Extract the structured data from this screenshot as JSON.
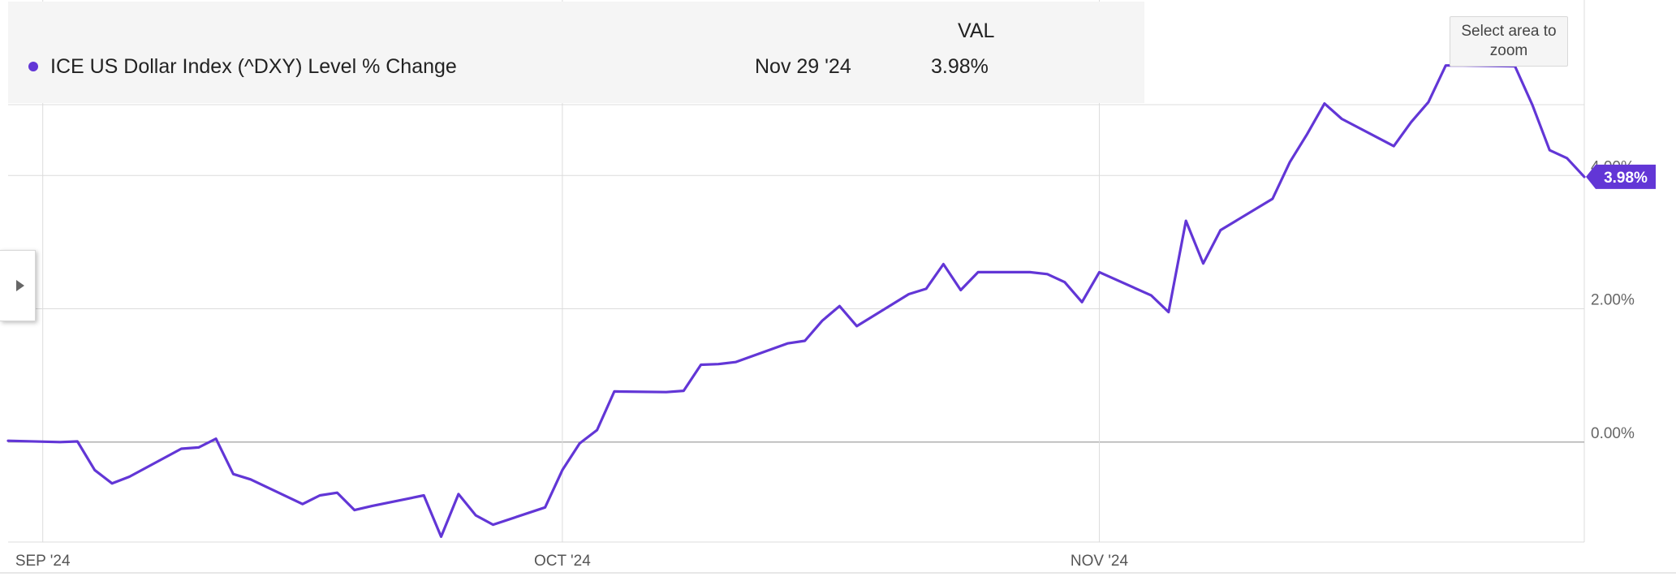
{
  "legend": {
    "column_header": "VAL",
    "series_name": "ICE US Dollar Index (^DXY) Level % Change",
    "date": "Nov 29 '24",
    "value": "3.98%"
  },
  "zoom_button_label": "Select area to zoom",
  "colors": {
    "series": "#6236d6",
    "grid": "#dcdcdc",
    "zero_line": "#b0b0b0"
  },
  "chart_data": {
    "type": "line",
    "title": "",
    "xlabel": "",
    "ylabel": "",
    "x_ticks": [
      {
        "date": "2024-09-01",
        "label": "SEP '24"
      },
      {
        "date": "2024-10-01",
        "label": "OCT '24"
      },
      {
        "date": "2024-11-01",
        "label": "NOV '24"
      }
    ],
    "y_ticks": [
      {
        "value": 0,
        "label": "0.00%"
      },
      {
        "value": 2,
        "label": "2.00%"
      },
      {
        "value": 4,
        "label": "4.00%"
      }
    ],
    "xlim": [
      "2024-08-30",
      "2024-11-29"
    ],
    "ylim": [
      -1.5,
      6.0
    ],
    "last_value_label": "3.98%",
    "series": [
      {
        "name": "ICE US Dollar Index (^DXY) Level % Change",
        "x": [
          "2024-08-30",
          "2024-09-02",
          "2024-09-03",
          "2024-09-04",
          "2024-09-05",
          "2024-09-06",
          "2024-09-09",
          "2024-09-10",
          "2024-09-11",
          "2024-09-12",
          "2024-09-13",
          "2024-09-16",
          "2024-09-17",
          "2024-09-18",
          "2024-09-19",
          "2024-09-20",
          "2024-09-23",
          "2024-09-24",
          "2024-09-25",
          "2024-09-26",
          "2024-09-27",
          "2024-09-30",
          "2024-10-01",
          "2024-10-02",
          "2024-10-03",
          "2024-10-04",
          "2024-10-07",
          "2024-10-08",
          "2024-10-09",
          "2024-10-10",
          "2024-10-11",
          "2024-10-14",
          "2024-10-15",
          "2024-10-16",
          "2024-10-17",
          "2024-10-18",
          "2024-10-21",
          "2024-10-22",
          "2024-10-23",
          "2024-10-24",
          "2024-10-25",
          "2024-10-28",
          "2024-10-29",
          "2024-10-30",
          "2024-10-31",
          "2024-11-01",
          "2024-11-04",
          "2024-11-05",
          "2024-11-06",
          "2024-11-07",
          "2024-11-08",
          "2024-11-11",
          "2024-11-12",
          "2024-11-13",
          "2024-11-14",
          "2024-11-15",
          "2024-11-18",
          "2024-11-19",
          "2024-11-20",
          "2024-11-21",
          "2024-11-22",
          "2024-11-25",
          "2024-11-26",
          "2024-11-27",
          "2024-11-28",
          "2024-11-29"
        ],
        "values": [
          0.02,
          0.0,
          0.01,
          -0.42,
          -0.62,
          -0.52,
          -0.1,
          -0.08,
          0.05,
          -0.48,
          -0.56,
          -0.93,
          -0.8,
          -0.76,
          -1.02,
          -0.96,
          -0.8,
          -1.42,
          -0.78,
          -1.1,
          -1.24,
          -0.98,
          -0.42,
          -0.02,
          0.18,
          0.76,
          0.75,
          0.77,
          1.16,
          1.17,
          1.2,
          1.48,
          1.52,
          1.82,
          2.04,
          1.74,
          2.22,
          2.3,
          2.67,
          2.28,
          2.55,
          2.55,
          2.52,
          2.4,
          2.1,
          2.55,
          2.2,
          1.95,
          3.32,
          2.68,
          3.18,
          3.65,
          4.2,
          4.62,
          5.08,
          4.85,
          4.44,
          4.8,
          5.1,
          5.65,
          5.65,
          5.64,
          5.06,
          4.38,
          4.26,
          3.98
        ]
      }
    ]
  }
}
